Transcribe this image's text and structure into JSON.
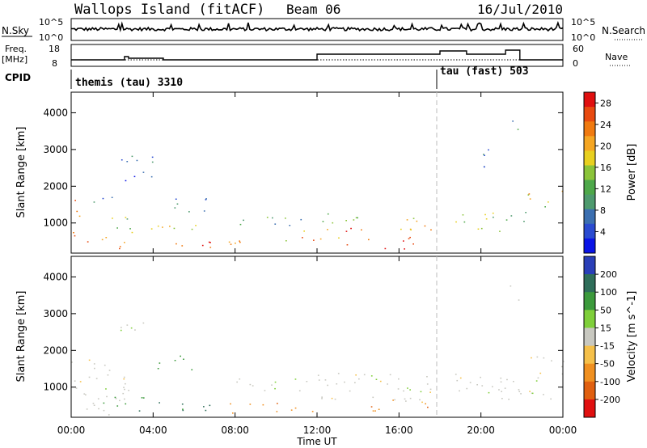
{
  "header": {
    "title": "Wallops Island (fitACF)",
    "beam": "Beam 06",
    "date": "16/Jul/2010"
  },
  "panels": {
    "nsky_label": "N.Sky",
    "nsearch_label": "N.Search",
    "nsky_ticks": [
      "10^5",
      "10^0"
    ],
    "nsearch_ticks": [
      "10^5",
      "10^0"
    ],
    "freq_label": "Freq.",
    "freq_unit": "[MHz]",
    "freq_ticks": [
      "18",
      "8"
    ],
    "nave_label": "Nave",
    "nave_ticks": [
      "60",
      "0"
    ],
    "cpid_label": "CPID",
    "cpid_segments": [
      {
        "label": "themis (tau) 3310",
        "start": 0,
        "end": 18
      },
      {
        "label": "tau (fast) 503",
        "start": 18,
        "end": 24
      }
    ]
  },
  "chart_data": [
    {
      "type": "heatmap",
      "panel": "power",
      "ylabel": "Slant Range [km]",
      "xlabel": "Time UT",
      "x_ticks": [
        "00:00",
        "04:00",
        "08:00",
        "12:00",
        "16:00",
        "20:00",
        "00:00"
      ],
      "xlim": [
        0,
        24
      ],
      "y_ticks": [
        1000,
        2000,
        3000,
        4000
      ],
      "ylim": [
        180,
        4560
      ],
      "colorbar": {
        "label": "Power [dB]",
        "ticks": [
          4,
          8,
          12,
          16,
          20,
          24,
          28
        ],
        "range": [
          0,
          30
        ],
        "colors": [
          "#0a14e6",
          "#2a4bd0",
          "#3b6fb0",
          "#4e9a6e",
          "#4ea84a",
          "#8bc43a",
          "#e8d020",
          "#f5a623",
          "#f07a10",
          "#e84a10",
          "#e01010"
        ]
      },
      "regions": [
        {
          "t0": 0.0,
          "t1": 0.4,
          "r0": 200,
          "r1": 1800,
          "level": 22
        },
        {
          "t0": 0.2,
          "t1": 2.0,
          "r0": 1550,
          "r1": 1800,
          "level": 8
        },
        {
          "t0": 0.4,
          "t1": 1.8,
          "r0": 300,
          "r1": 650,
          "level": 24
        },
        {
          "t0": 1.4,
          "t1": 3.6,
          "r0": 300,
          "r1": 500,
          "level": 26
        },
        {
          "t0": 1.6,
          "t1": 3.2,
          "r0": 700,
          "r1": 1200,
          "level": 14
        },
        {
          "t0": 2.2,
          "t1": 4.0,
          "r0": 2100,
          "r1": 2900,
          "level": 6
        },
        {
          "t0": 3.2,
          "t1": 7.2,
          "r0": 350,
          "r1": 550,
          "level": 27
        },
        {
          "t0": 3.8,
          "t1": 7.6,
          "r0": 800,
          "r1": 1050,
          "level": 18
        },
        {
          "t0": 5.0,
          "t1": 7.6,
          "r0": 1300,
          "r1": 1700,
          "level": 7
        },
        {
          "t0": 7.6,
          "t1": 11.0,
          "r0": 350,
          "r1": 600,
          "level": 20
        },
        {
          "t0": 8.0,
          "t1": 11.6,
          "r0": 950,
          "r1": 1250,
          "level": 12
        },
        {
          "t0": 11.2,
          "t1": 13.2,
          "r0": 500,
          "r1": 900,
          "level": 22
        },
        {
          "t0": 11.6,
          "t1": 14.0,
          "r0": 1000,
          "r1": 1400,
          "level": 14
        },
        {
          "t0": 13.2,
          "t1": 14.6,
          "r0": 400,
          "r1": 900,
          "level": 27
        },
        {
          "t0": 15.0,
          "t1": 16.8,
          "r0": 300,
          "r1": 800,
          "level": 28
        },
        {
          "t0": 16.0,
          "t1": 19.0,
          "r0": 800,
          "r1": 1200,
          "level": 20
        },
        {
          "t0": 19.0,
          "t1": 21.0,
          "r0": 700,
          "r1": 1300,
          "level": 14
        },
        {
          "t0": 21.0,
          "t1": 22.2,
          "r0": 900,
          "r1": 1400,
          "level": 10
        },
        {
          "t0": 22.2,
          "t1": 24.0,
          "r0": 1400,
          "r1": 1900,
          "level": 18
        },
        {
          "t0": 21.4,
          "t1": 22.0,
          "r0": 3300,
          "r1": 3800,
          "level": 10
        },
        {
          "t0": 19.6,
          "t1": 20.4,
          "r0": 2500,
          "r1": 3300,
          "level": 6
        }
      ]
    },
    {
      "type": "heatmap",
      "panel": "velocity",
      "ylabel": "Slant Range [km]",
      "xlabel": "Time UT",
      "x_ticks": [
        "00:00",
        "04:00",
        "08:00",
        "12:00",
        "16:00",
        "20:00",
        "00:00"
      ],
      "xlim": [
        0,
        24
      ],
      "y_ticks": [
        1000,
        2000,
        3000,
        4000
      ],
      "ylim": [
        180,
        4560
      ],
      "colorbar": {
        "label": "Velocity [m s^-1]",
        "ticks": [
          200,
          100,
          50,
          15,
          -15,
          -50,
          -100,
          -200
        ],
        "colors": [
          "#2a3fb8",
          "#2f6e5a",
          "#3c9a3c",
          "#7fcf3a",
          "#c8c8c0",
          "#f5c04a",
          "#f09020",
          "#e06010",
          "#e01010"
        ]
      },
      "regions": [
        {
          "t0": 0.0,
          "t1": 3.0,
          "r0": 250,
          "r1": 1800,
          "level": 0
        },
        {
          "t0": 1.0,
          "t1": 3.8,
          "r0": 450,
          "r1": 750,
          "level": 2
        },
        {
          "t0": 3.0,
          "t1": 7.6,
          "r0": 350,
          "r1": 600,
          "level": 3
        },
        {
          "t0": 4.2,
          "t1": 6.0,
          "r0": 1400,
          "r1": 1900,
          "level": 2
        },
        {
          "t0": 2.4,
          "t1": 3.6,
          "r0": 2200,
          "r1": 2900,
          "level": 0
        },
        {
          "t0": 7.6,
          "t1": 12.0,
          "r0": 300,
          "r1": 600,
          "level": -2
        },
        {
          "t0": 8.0,
          "t1": 12.0,
          "r0": 900,
          "r1": 1300,
          "level": 0
        },
        {
          "t0": 12.0,
          "t1": 24.0,
          "r0": 600,
          "r1": 1400,
          "level": 0
        },
        {
          "t0": 14.6,
          "t1": 17.4,
          "r0": 300,
          "r1": 700,
          "level": -2
        },
        {
          "t0": 22.2,
          "t1": 24.0,
          "r0": 1400,
          "r1": 1900,
          "level": 0
        },
        {
          "t0": 21.4,
          "t1": 22.0,
          "r0": 3300,
          "r1": 3800,
          "level": 0
        }
      ]
    }
  ]
}
